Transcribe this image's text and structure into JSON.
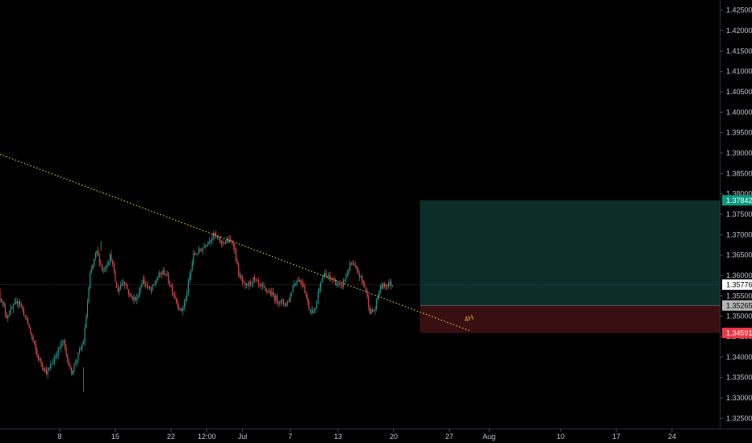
{
  "chart_data": {
    "type": "candlestick",
    "title": "",
    "grid": false,
    "colors": {
      "background": "#000000",
      "up": "#26a69a",
      "down": "#ef5350",
      "trendline": "#e6d437",
      "target_zone": "#0b2e29",
      "stop_zone": "#3a0f12",
      "current_price_badge": "#ffffff",
      "entry_badge": "#b4b4b4",
      "target_badge": "#089981",
      "stop_badge": "#f23645",
      "axis_text": "#bfc3cc"
    },
    "y_axis": {
      "side": "right",
      "range": [
        1.3225,
        1.4275
      ],
      "ticks": [
        "1.42500",
        "1.42000",
        "1.41500",
        "1.41000",
        "1.40500",
        "1.40000",
        "1.39500",
        "1.39000",
        "1.38500",
        "1.38000",
        "1.37500",
        "1.37000",
        "1.36500",
        "1.36000",
        "1.35500",
        "1.35000",
        "1.34500",
        "1.34000",
        "1.33500",
        "1.33000",
        "1.32500"
      ]
    },
    "x_axis": {
      "ticks": [
        "8",
        "15",
        "22",
        "12:00",
        "Jul",
        "7",
        "13",
        "20",
        "27",
        "Aug",
        "10",
        "17",
        "24"
      ],
      "tick_day_index": [
        8,
        15,
        22,
        26.5,
        31,
        37,
        43,
        50,
        57,
        62,
        71,
        78,
        85
      ],
      "range_day_index": [
        0.5,
        91
      ]
    },
    "price_badges": {
      "current": "1.35776",
      "entry": "1.35265",
      "target": "1.37842",
      "stop": "1.34591"
    },
    "position": {
      "type": "long",
      "entry": 1.35265,
      "target": 1.37842,
      "stop": 1.34591,
      "start_day_index": 53.3,
      "end_day_index": 91
    },
    "trendline": {
      "start": {
        "day_index": 0.5,
        "price": 1.3897
      },
      "end": {
        "day_index": 59.5,
        "price": 1.3465
      },
      "style": "dotted"
    },
    "annotation": {
      "label": "4H",
      "day_index": 59.8,
      "price": 1.3466
    },
    "candle_interval_days": 0.1667,
    "path": [
      [
        0.5,
        1.356
      ],
      [
        1.5,
        1.35
      ],
      [
        3.0,
        1.354
      ],
      [
        4.2,
        1.348
      ],
      [
        5.4,
        1.34
      ],
      [
        6.6,
        1.336
      ],
      [
        7.8,
        1.341
      ],
      [
        8.6,
        1.344
      ],
      [
        9.6,
        1.336
      ],
      [
        10.4,
        1.34
      ],
      [
        11.2,
        1.344
      ],
      [
        12.0,
        1.36
      ],
      [
        12.8,
        1.366
      ],
      [
        13.6,
        1.361
      ],
      [
        14.6,
        1.365
      ],
      [
        15.4,
        1.356
      ],
      [
        16.2,
        1.359
      ],
      [
        17.0,
        1.355
      ],
      [
        17.8,
        1.354
      ],
      [
        18.6,
        1.359
      ],
      [
        19.6,
        1.356
      ],
      [
        20.6,
        1.36
      ],
      [
        21.4,
        1.361
      ],
      [
        22.4,
        1.356
      ],
      [
        23.4,
        1.351
      ],
      [
        24.0,
        1.354
      ],
      [
        25.0,
        1.365
      ],
      [
        25.8,
        1.366
      ],
      [
        26.6,
        1.368
      ],
      [
        27.6,
        1.37
      ],
      [
        28.4,
        1.368
      ],
      [
        29.2,
        1.3685
      ],
      [
        30.0,
        1.368
      ],
      [
        30.7,
        1.36
      ],
      [
        31.5,
        1.357
      ],
      [
        32.5,
        1.359
      ],
      [
        33.5,
        1.357
      ],
      [
        34.5,
        1.356
      ],
      [
        35.5,
        1.354
      ],
      [
        36.5,
        1.353
      ],
      [
        37.0,
        1.354
      ],
      [
        37.6,
        1.358
      ],
      [
        38.2,
        1.359
      ],
      [
        38.8,
        1.358
      ],
      [
        39.5,
        1.352
      ],
      [
        40.2,
        1.351
      ],
      [
        41.0,
        1.359
      ],
      [
        41.5,
        1.36
      ],
      [
        42.5,
        1.359
      ],
      [
        43.5,
        1.357
      ],
      [
        44.2,
        1.36
      ],
      [
        44.8,
        1.363
      ],
      [
        45.6,
        1.361
      ],
      [
        46.6,
        1.357
      ],
      [
        47.2,
        1.351
      ],
      [
        47.8,
        1.3515
      ],
      [
        48.4,
        1.357
      ],
      [
        49.4,
        1.358
      ],
      [
        50.0,
        1.3578
      ]
    ]
  }
}
